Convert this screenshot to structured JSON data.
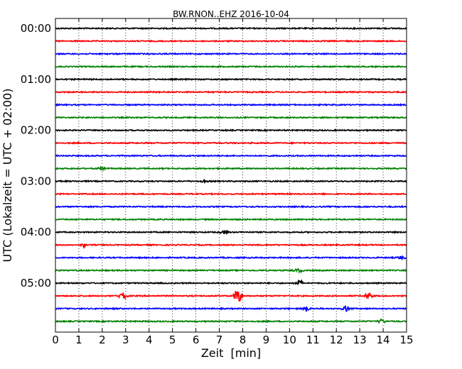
{
  "chart_data": {
    "type": "line",
    "title": "BW.RNON..EHZ 2016-10-04",
    "xlabel": "Zeit  [min]",
    "ylabel": "UTC (Lokalzeit = UTC + 02:00)",
    "xlim": [
      0,
      15
    ],
    "x_ticks": [
      "0",
      "1",
      "2",
      "3",
      "4",
      "5",
      "6",
      "7",
      "8",
      "9",
      "10",
      "11",
      "12",
      "13",
      "14",
      "15"
    ],
    "y_tick_labels": [
      "00:00",
      "01:00",
      "02:00",
      "03:00",
      "04:00",
      "05:00"
    ],
    "grid": "vertical dotted",
    "trace_interval_minutes": 15,
    "trace_colors": [
      "#000000",
      "#ff0000",
      "#0000ff",
      "#008000"
    ],
    "traces": [
      {
        "start": "00:00",
        "color": "#000000",
        "events": []
      },
      {
        "start": "00:15",
        "color": "#ff0000",
        "events": []
      },
      {
        "start": "00:30",
        "color": "#0000ff",
        "events": []
      },
      {
        "start": "00:45",
        "color": "#008000",
        "events": []
      },
      {
        "start": "01:00",
        "color": "#000000",
        "events": []
      },
      {
        "start": "01:15",
        "color": "#ff0000",
        "events": []
      },
      {
        "start": "01:30",
        "color": "#0000ff",
        "events": []
      },
      {
        "start": "01:45",
        "color": "#008000",
        "events": []
      },
      {
        "start": "02:00",
        "color": "#000000",
        "events": []
      },
      {
        "start": "02:15",
        "color": "#ff0000",
        "events": []
      },
      {
        "start": "02:30",
        "color": "#0000ff",
        "events": []
      },
      {
        "start": "02:45",
        "color": "#008000",
        "events": [
          {
            "t": 2.0,
            "amp": 0.15
          }
        ]
      },
      {
        "start": "03:00",
        "color": "#000000",
        "events": [
          {
            "t": 6.3,
            "amp": 0.15
          }
        ]
      },
      {
        "start": "03:15",
        "color": "#ff0000",
        "events": []
      },
      {
        "start": "03:30",
        "color": "#0000ff",
        "events": []
      },
      {
        "start": "03:45",
        "color": "#008000",
        "events": []
      },
      {
        "start": "04:00",
        "color": "#000000",
        "events": [
          {
            "t": 7.2,
            "amp": 0.2
          }
        ]
      },
      {
        "start": "04:15",
        "color": "#ff0000",
        "events": [
          {
            "t": 1.2,
            "amp": 0.2
          }
        ]
      },
      {
        "start": "04:30",
        "color": "#0000ff",
        "events": [
          {
            "t": 14.8,
            "amp": 0.2
          }
        ]
      },
      {
        "start": "04:45",
        "color": "#008000",
        "events": [
          {
            "t": 10.4,
            "amp": 0.2
          }
        ]
      },
      {
        "start": "05:00",
        "color": "#000000",
        "events": [
          {
            "t": 10.4,
            "amp": 0.3
          }
        ]
      },
      {
        "start": "05:15",
        "color": "#ff0000",
        "events": [
          {
            "t": 2.9,
            "amp": 0.4
          },
          {
            "t": 7.8,
            "amp": 0.9
          },
          {
            "t": 13.4,
            "amp": 0.35
          }
        ]
      },
      {
        "start": "05:30",
        "color": "#0000ff",
        "events": [
          {
            "t": 10.7,
            "amp": 0.3
          },
          {
            "t": 12.4,
            "amp": 0.35
          }
        ]
      },
      {
        "start": "05:45",
        "color": "#008000",
        "events": [
          {
            "t": 13.9,
            "amp": 0.3
          }
        ]
      }
    ]
  }
}
